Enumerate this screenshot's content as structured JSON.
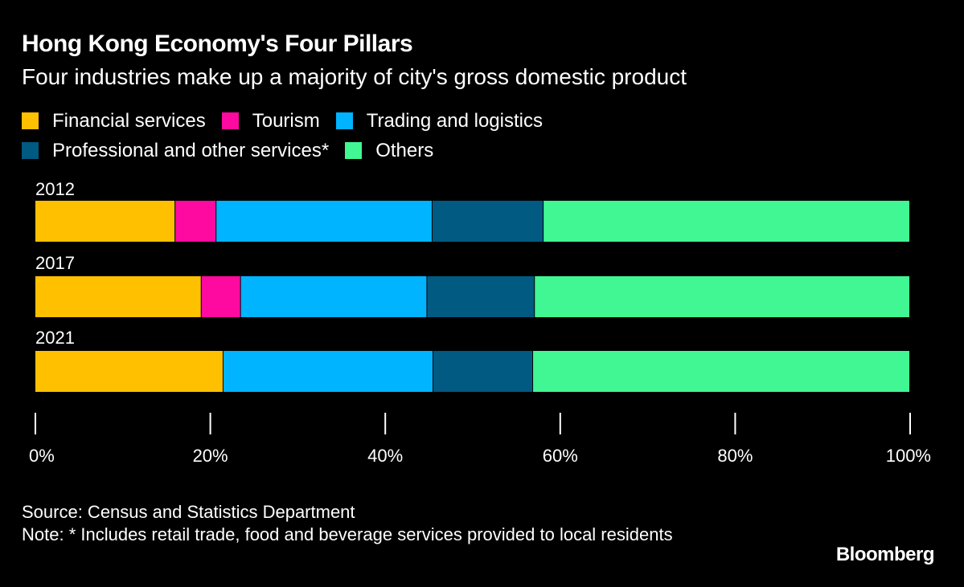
{
  "header": {
    "title": "Hong Kong Economy's Four Pillars",
    "subtitle": "Four industries make up a majority of city's gross domestic product"
  },
  "legend": {
    "row1": [
      {
        "label": "Financial services",
        "color": "#FFC000"
      },
      {
        "label": "Tourism",
        "color": "#FF0AA0"
      },
      {
        "label": "Trading and logistics",
        "color": "#00B4FF"
      }
    ],
    "row2": [
      {
        "label": "Professional and other services*",
        "color": "#005A82"
      },
      {
        "label": "Others",
        "color": "#40F794"
      }
    ]
  },
  "chart_data": {
    "type": "bar",
    "orientation": "horizontal",
    "stacked": true,
    "title": "Hong Kong Economy's Four Pillars",
    "subtitle": "Four industries make up a majority of city's gross domestic product",
    "xlabel": "",
    "ylabel": "",
    "xlim": [
      0,
      100
    ],
    "unit": "%",
    "categories": [
      "2012",
      "2017",
      "2021"
    ],
    "series": [
      {
        "name": "Financial services",
        "color": "#FFC000",
        "values": [
          16.0,
          19.0,
          21.5
        ]
      },
      {
        "name": "Tourism",
        "color": "#FF0AA0",
        "values": [
          4.7,
          4.5,
          0.0
        ]
      },
      {
        "name": "Trading and logistics",
        "color": "#00B4FF",
        "values": [
          24.7,
          21.3,
          24.0
        ]
      },
      {
        "name": "Professional and other services*",
        "color": "#005A82",
        "values": [
          12.7,
          12.3,
          11.4
        ]
      },
      {
        "name": "Others",
        "color": "#40F794",
        "values": [
          41.9,
          42.9,
          43.1
        ]
      }
    ],
    "ticks": [
      "0%",
      "20%",
      "40%",
      "60%",
      "80%",
      "100%"
    ],
    "tick_values": [
      0,
      20,
      40,
      60,
      80,
      100
    ],
    "legend_position": "top-left"
  },
  "footer": {
    "source": "Source: Census and Statistics Department",
    "note": "Note: * Includes retail trade, food and beverage services provided to local residents"
  },
  "brand": {
    "name": "Bloomberg"
  }
}
